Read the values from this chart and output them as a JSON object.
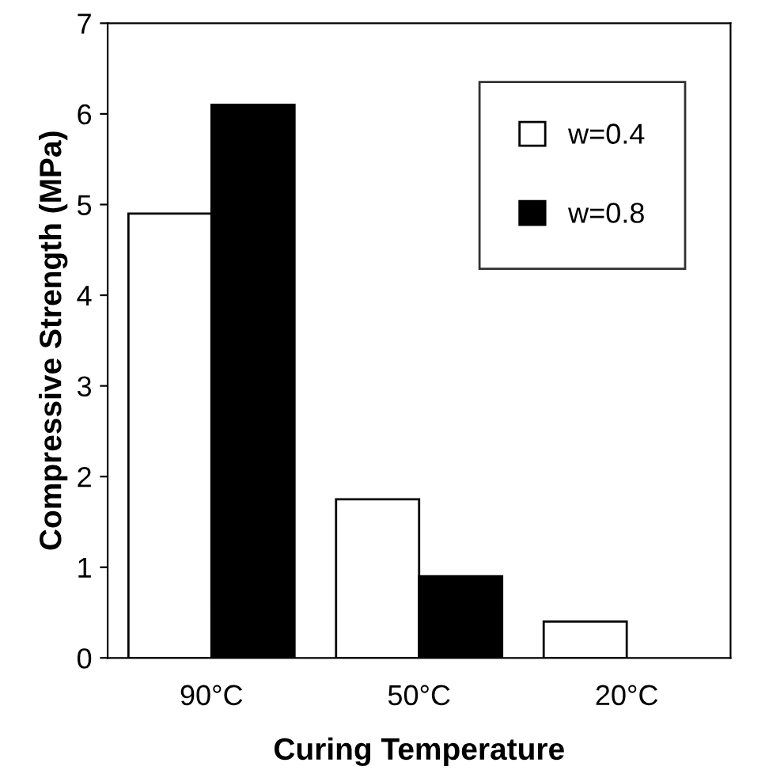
{
  "chart_data": {
    "type": "bar",
    "xlabel": "Curing Temperature",
    "ylabel": "Compressive Strength (MPa)",
    "categories": [
      "90°C",
      "50°C",
      "20°C"
    ],
    "series": [
      {
        "name": "w=0.4",
        "color": "#ffffff",
        "values": [
          4.9,
          1.75,
          0.4
        ]
      },
      {
        "name": "w=0.8",
        "color": "#000000",
        "values": [
          6.1,
          0.9,
          null
        ]
      }
    ],
    "ylim": [
      0,
      7
    ],
    "yticks": [
      0,
      1,
      2,
      3,
      4,
      5,
      6,
      7
    ],
    "grid": false,
    "legend": "top right"
  }
}
